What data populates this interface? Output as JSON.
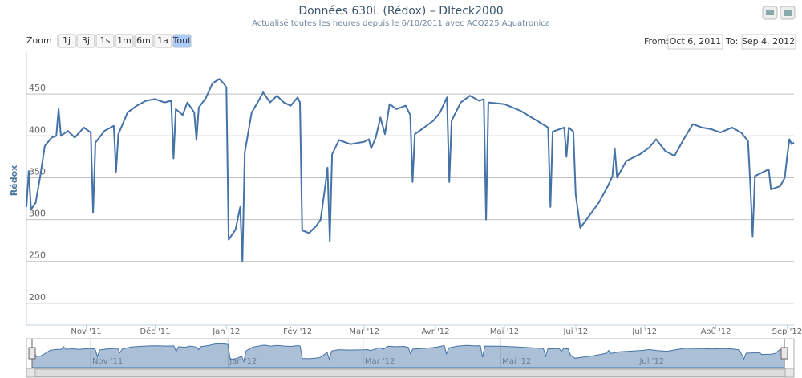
{
  "chart_data": {
    "type": "line",
    "title": "Données 630L (Rédox) – DIteck2000",
    "subtitle": "Actualisé toutes les heures depuis le 6/10/2011 avec ACQ225 Aquatronica",
    "y_label": "Rédox",
    "range_selector": {
      "zoom_label": "Zoom",
      "buttons": [
        "1j",
        "3j",
        "1s",
        "1m",
        "6m",
        "1a",
        "Tout"
      ],
      "selected": 6,
      "from_label": "From:",
      "from": "Oct 6, 2011",
      "to_label": "To:",
      "to": "Sep 4, 2012"
    },
    "color": "#4572a7",
    "x": [
      "2011-10-06",
      "2011-10-07",
      "2011-10-08",
      "2011-10-10",
      "2011-10-12",
      "2011-10-14",
      "2011-10-17",
      "2011-10-19",
      "2011-10-20",
      "2011-10-21",
      "2011-10-24",
      "2011-10-27",
      "2011-10-31",
      "2011-11-03",
      "2011-11-04",
      "2011-11-05",
      "2011-11-09",
      "2011-11-13",
      "2011-11-14",
      "2011-11-15",
      "2011-11-19",
      "2011-11-23",
      "2011-11-27",
      "2011-12-01",
      "2011-12-05",
      "2011-12-08",
      "2011-12-09",
      "2011-12-10",
      "2011-12-13",
      "2011-12-15",
      "2011-12-18",
      "2011-12-19",
      "2011-12-20",
      "2011-12-23",
      "2011-12-26",
      "2011-12-29",
      "2011-12-31",
      "2012-01-01",
      "2012-01-02",
      "2012-01-05",
      "2012-01-07",
      "2012-01-08",
      "2012-01-09",
      "2012-01-12",
      "2012-01-15",
      "2012-01-17",
      "2012-01-20",
      "2012-01-23",
      "2012-01-26",
      "2012-01-29",
      "2012-02-01",
      "2012-02-02",
      "2012-02-03",
      "2012-02-06",
      "2012-02-09",
      "2012-02-11",
      "2012-02-13",
      "2012-02-14",
      "2012-02-15",
      "2012-02-16",
      "2012-02-19",
      "2012-02-24",
      "2012-03-01",
      "2012-03-03",
      "2012-03-04",
      "2012-03-06",
      "2012-03-08",
      "2012-03-10",
      "2012-03-12",
      "2012-03-15",
      "2012-03-19",
      "2012-03-21",
      "2012-03-22",
      "2012-03-23",
      "2012-03-27",
      "2012-03-31",
      "2012-04-03",
      "2012-04-06",
      "2012-04-07",
      "2012-04-08",
      "2012-04-12",
      "2012-04-16",
      "2012-04-20",
      "2012-04-22",
      "2012-04-23",
      "2012-04-24",
      "2012-05-01",
      "2012-05-08",
      "2012-05-14",
      "2012-05-20",
      "2012-05-21",
      "2012-05-22",
      "2012-05-27",
      "2012-05-28",
      "2012-05-29",
      "2012-05-31",
      "2012-06-01",
      "2012-06-03",
      "2012-06-07",
      "2012-06-11",
      "2012-06-15",
      "2012-06-17",
      "2012-06-18",
      "2012-06-19",
      "2012-06-23",
      "2012-06-29",
      "2012-07-03",
      "2012-07-06",
      "2012-07-10",
      "2012-07-14",
      "2012-07-18",
      "2012-07-22",
      "2012-07-26",
      "2012-07-30",
      "2012-08-03",
      "2012-08-08",
      "2012-08-12",
      "2012-08-15",
      "2012-08-16",
      "2012-08-17",
      "2012-08-18",
      "2012-08-21",
      "2012-08-24",
      "2012-08-25",
      "2012-08-29",
      "2012-08-31",
      "2012-09-01",
      "2012-09-02",
      "2012-09-03",
      "2012-09-04"
    ],
    "values": [
      315,
      358,
      312,
      320,
      352,
      388,
      398,
      400,
      432,
      400,
      406,
      398,
      410,
      404,
      308,
      392,
      406,
      412,
      357,
      402,
      428,
      436,
      442,
      444,
      440,
      442,
      373,
      432,
      425,
      440,
      428,
      395,
      434,
      445,
      463,
      468,
      462,
      458,
      276,
      288,
      315,
      250,
      380,
      428,
      442,
      452,
      440,
      448,
      440,
      436,
      446,
      440,
      287,
      284,
      292,
      300,
      340,
      362,
      274,
      378,
      395,
      390,
      393,
      396,
      385,
      398,
      422,
      402,
      438,
      432,
      436,
      425,
      345,
      402,
      410,
      418,
      428,
      446,
      345,
      418,
      440,
      448,
      442,
      444,
      300,
      440,
      438,
      430,
      420,
      410,
      315,
      405,
      410,
      375,
      410,
      405,
      330,
      290,
      305,
      320,
      340,
      352,
      385,
      350,
      370,
      378,
      386,
      396,
      382,
      376,
      396,
      414,
      410,
      408,
      404,
      410,
      404,
      394,
      340,
      280,
      352,
      356,
      360,
      336,
      340,
      350,
      375,
      396,
      390,
      392
    ],
    "xlim": [
      "2011-10-06",
      "2012-09-04"
    ],
    "xticks": [
      {
        "value": "2011-11-01",
        "label": "Nov '11"
      },
      {
        "value": "2011-12-01",
        "label": "Déc '11"
      },
      {
        "value": "2012-01-01",
        "label": "Jan '12"
      },
      {
        "value": "2012-02-01",
        "label": "Fév '12"
      },
      {
        "value": "2012-03-01",
        "label": "Mar '12"
      },
      {
        "value": "2012-04-01",
        "label": "Avr '12"
      },
      {
        "value": "2012-05-01",
        "label": "Mai '12"
      },
      {
        "value": "2012-06-01",
        "label": "Jui '12"
      },
      {
        "value": "2012-07-01",
        "label": "Jul '12"
      },
      {
        "value": "2012-08-01",
        "label": "Aoû '12"
      },
      {
        "value": "2012-09-01",
        "label": "Sep '12"
      }
    ],
    "ylim": [
      174,
      500
    ],
    "yticks": [
      200,
      250,
      300,
      350,
      400,
      450
    ],
    "grid": true,
    "navigator": {
      "xticks": [
        {
          "value": "2011-11-01",
          "label": "Nov '11"
        },
        {
          "value": "2012-01-01",
          "label": "Jan '12"
        },
        {
          "value": "2012-03-01",
          "label": "Mar '12"
        },
        {
          "value": "2012-05-01",
          "label": "Mai '12"
        },
        {
          "value": "2012-07-01",
          "label": "Jul '12"
        }
      ]
    }
  }
}
